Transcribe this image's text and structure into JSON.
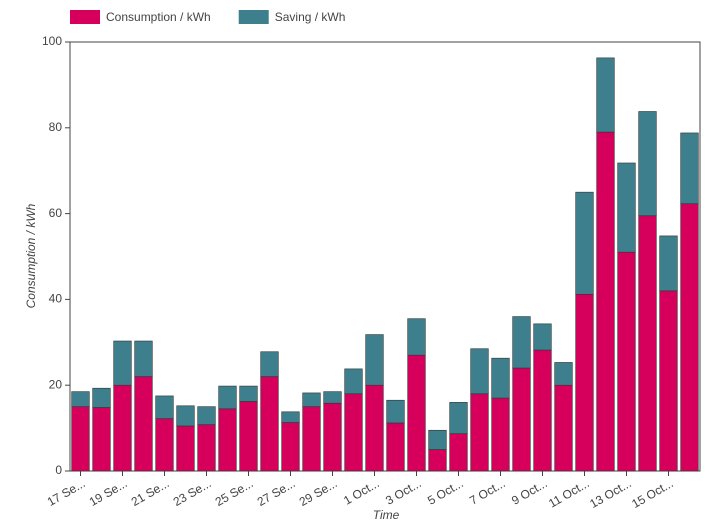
{
  "chart_data": {
    "type": "stacked_bar",
    "categories": [
      "17 Se...",
      null,
      "19 Se...",
      null,
      "21 Se...",
      null,
      "23 Se...",
      null,
      "25 Se...",
      null,
      "27 Se...",
      null,
      "29 Se...",
      null,
      "1 Oct...",
      null,
      "3 Oct...",
      null,
      "5 Oct...",
      null,
      "7 Oct...",
      null,
      "9 Oct...",
      null,
      "11 Oct...",
      null,
      "13 Oct...",
      null,
      "15 Oct...",
      null
    ],
    "series": [
      {
        "name": "Consumption / kWh",
        "color": "#d6005c",
        "values": [
          15,
          14.8,
          20,
          22,
          12.2,
          10.5,
          10.8,
          14.5,
          16.2,
          22,
          11.3,
          15,
          15.8,
          18,
          20,
          11.2,
          27,
          5,
          8.7,
          18,
          17,
          24,
          28.2,
          20,
          41.2,
          79,
          51,
          59.5,
          42,
          62.3
        ]
      },
      {
        "name": "Saving / kWh",
        "color": "#3d7f8c",
        "values": [
          3.5,
          4.5,
          10.3,
          8.3,
          5.3,
          4.7,
          4.2,
          5.3,
          3.6,
          5.8,
          2.5,
          3.2,
          2.7,
          5.8,
          11.8,
          5.3,
          8.5,
          4.5,
          7.3,
          10.5,
          9.3,
          12,
          6.1,
          5.3,
          23.8,
          17.3,
          20.8,
          24.3,
          12.8,
          16.5
        ]
      }
    ],
    "xlabel": "Time",
    "ylabel": "Consumption / kWh",
    "ylim": [
      0,
      100
    ],
    "yticks": [
      0,
      20,
      40,
      60,
      80,
      100
    ],
    "legend": "top"
  }
}
